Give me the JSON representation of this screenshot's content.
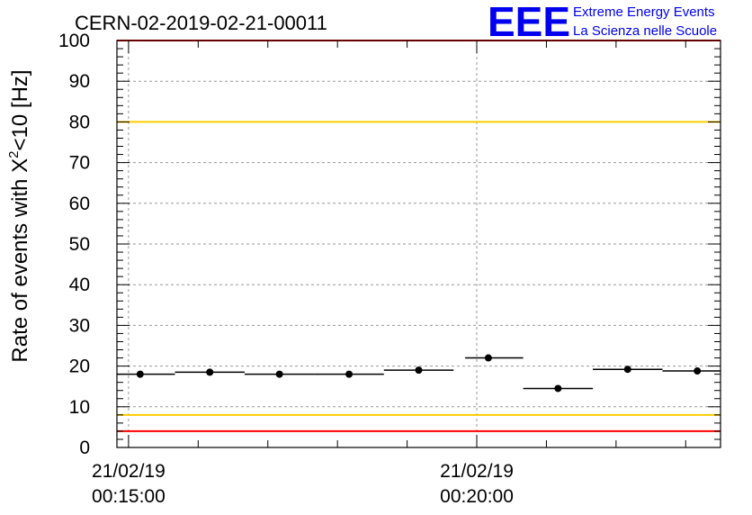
{
  "chart_data": {
    "type": "scatter",
    "title": "CERN-02-2019-02-21-00011",
    "ylabel_main": "Rate of events with X",
    "ylabel_sup": "2",
    "ylabel_rest": "<10 [Hz]",
    "ylim": [
      0,
      100
    ],
    "yticks": [
      "0",
      "10",
      "20",
      "30",
      "40",
      "50",
      "60",
      "70",
      "80",
      "90",
      "100"
    ],
    "x_tick_labels": [
      {
        "date": "21/02/19",
        "time": "00:15:00",
        "t_sec": 0
      },
      {
        "date": "21/02/19",
        "time": "00:20:00",
        "t_sec": 300
      }
    ],
    "xlim_sec": [
      -10,
      510
    ],
    "grid": true,
    "points": [
      {
        "t_sec": 10,
        "t_lo": -10,
        "t_hi": 40,
        "y": 18.0
      },
      {
        "t_sec": 70,
        "t_lo": 40,
        "t_hi": 100,
        "y": 18.5
      },
      {
        "t_sec": 130,
        "t_lo": 100,
        "t_hi": 160,
        "y": 18.0
      },
      {
        "t_sec": 190,
        "t_lo": 160,
        "t_hi": 220,
        "y": 18.0
      },
      {
        "t_sec": 250,
        "t_lo": 220,
        "t_hi": 280,
        "y": 19.0
      },
      {
        "t_sec": 310,
        "t_lo": 290,
        "t_hi": 340,
        "y": 22.0
      },
      {
        "t_sec": 370,
        "t_lo": 340,
        "t_hi": 400,
        "y": 14.5
      },
      {
        "t_sec": 430,
        "t_lo": 400,
        "t_hi": 460,
        "y": 19.2
      },
      {
        "t_sec": 490,
        "t_lo": 460,
        "t_hi": 510,
        "y": 18.8
      }
    ],
    "reference_lines": [
      {
        "y": 80,
        "color": "#ffcc00"
      },
      {
        "y": 8,
        "color": "#ffcc00"
      },
      {
        "y": 4,
        "color": "#ff0000"
      },
      {
        "y": 100,
        "color": "#ff0000"
      }
    ]
  },
  "logo": {
    "mark": "EEE",
    "line1": "Extreme Energy Events",
    "line2": "La Scienza nelle Scuole",
    "color": "#0000ee"
  }
}
